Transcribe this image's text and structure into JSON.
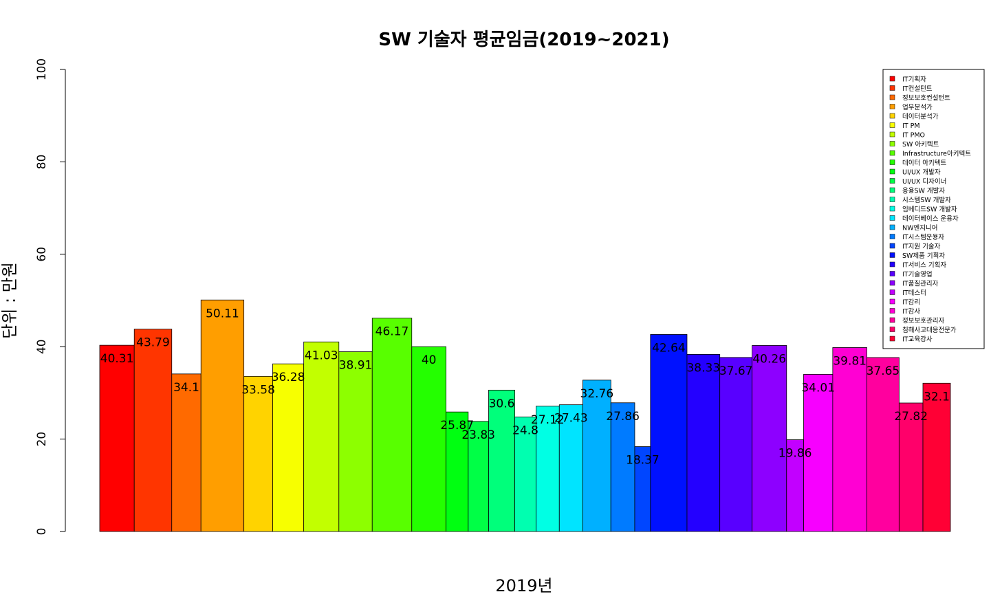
{
  "chart_data": {
    "type": "bar",
    "title": "SW 기술자 평균임금(2019~2021)",
    "xlabel": "2019년",
    "ylabel": "단위 : 만원",
    "ylim": [
      0,
      100
    ],
    "yticks": [
      "0",
      "20",
      "40",
      "60",
      "80",
      "100"
    ],
    "grid": false,
    "legend_position": "top-right",
    "categories": [
      "IT기획자",
      "IT컨설턴트",
      "정보보호컨설턴트",
      "업무분석가",
      "데이터분석가",
      "IT PM",
      "IT PMO",
      "SW 아키텍트",
      "Infrastructure아키텍트",
      "데이터 아키텍트",
      "UI/UX 개발자",
      "UI/UX 디자이너",
      "응용SW 개발자",
      "시스템SW 개발자",
      "임베디드SW 개발자",
      "데이터베이스 운용자",
      "NW엔지니어",
      "IT시스템운용자",
      "IT지원 기술자",
      "SW제품 기획자",
      "IT서비스 기획자",
      "IT기술영업",
      "IT품질관리자",
      "IT테스터",
      "IT감리",
      "IT감사",
      "정보보호관리자",
      "침해사고대응전문가",
      "IT교육강사"
    ],
    "values": [
      40.31,
      43.79,
      34.1,
      50.11,
      33.58,
      36.28,
      41.03,
      38.91,
      46.17,
      40,
      25.87,
      23.83,
      30.6,
      24.8,
      27.12,
      27.43,
      32.76,
      27.86,
      18.37,
      42.64,
      38.33,
      37.67,
      40.26,
      19.86,
      34.01,
      39.81,
      37.65,
      27.82,
      32.1
    ],
    "value_labels": [
      "40.31",
      "43.79",
      "34.1",
      "50.11",
      "33.58",
      "36.28",
      "41.03",
      "38.91",
      "46.17",
      "40",
      "25.87",
      "23.83",
      "30.6",
      "24.8",
      "27.12",
      "27.43",
      "32.76",
      "27.86",
      "18.37",
      "42.64",
      "38.33",
      "37.67",
      "40.26",
      "19.86",
      "34.01",
      "39.81",
      "37.65",
      "27.82",
      "32.1"
    ],
    "relative_widths": [
      40.31,
      43.79,
      34.1,
      50.11,
      33.58,
      36.28,
      41.03,
      38.91,
      46.17,
      40,
      25.87,
      23.83,
      30.6,
      24.8,
      27.12,
      27.43,
      32.76,
      27.86,
      18.37,
      42.64,
      38.33,
      37.67,
      40.26,
      19.86,
      34.01,
      39.81,
      37.65,
      27.82,
      32.1
    ],
    "colors": [
      "#FF0000",
      "#FF3500",
      "#FF6A00",
      "#FF9E00",
      "#FFD300",
      "#F7FF00",
      "#C2FF00",
      "#8DFF00",
      "#58FF00",
      "#24FF00",
      "#00FF11",
      "#00FF46",
      "#00FF7B",
      "#00FFB0",
      "#00FFE4",
      "#00E4FF",
      "#00B0FF",
      "#007BFF",
      "#0046FF",
      "#0011FF",
      "#2400FF",
      "#5800FF",
      "#8D00FF",
      "#C200FF",
      "#F700FF",
      "#FF00D3",
      "#FF009E",
      "#FF006A",
      "#FF0035"
    ]
  }
}
